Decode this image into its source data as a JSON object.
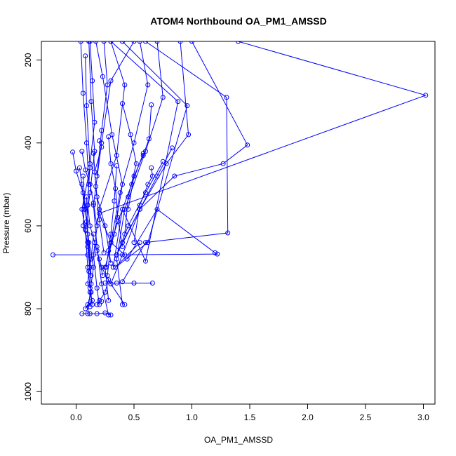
{
  "chart_data": {
    "type": "line",
    "title": "ATOM4 Northbound OA_PM1_AMSSD",
    "xlabel": "OA_PM1_AMSSD",
    "ylabel": "Pressure (mbar)",
    "xlim": [
      -0.3,
      3.1
    ],
    "ylim": [
      1030,
      155
    ],
    "y_reversed": true,
    "x_ticks": [
      0.0,
      0.5,
      1.0,
      1.5,
      2.0,
      2.5,
      3.0
    ],
    "x_tick_labels": [
      "0.0",
      "0.5",
      "1.0",
      "1.5",
      "2.0",
      "2.5",
      "3.0"
    ],
    "y_ticks": [
      200,
      400,
      600,
      800,
      1000
    ],
    "y_tick_labels": [
      "200",
      "400",
      "600",
      "800",
      "1000"
    ],
    "grid": false,
    "legend": "none",
    "series_color": "#0000ff",
    "series": [
      {
        "x": [
          0.11,
          0.13,
          0.16,
          0.12,
          0.08,
          0.1,
          0.14,
          0.12,
          0.15,
          0.1,
          0.09
        ],
        "y": [
          155,
          300,
          420,
          520,
          610,
          700,
          790,
          760,
          700,
          620,
          530
        ]
      },
      {
        "x": [
          0.08,
          0.09,
          0.12,
          0.05,
          0.1,
          0.13,
          0.1
        ],
        "y": [
          190,
          310,
          460,
          560,
          650,
          740,
          812
        ]
      },
      {
        "x": [
          0.5,
          0.3,
          0.22,
          0.15,
          0.18,
          0.22,
          0.28
        ],
        "y": [
          155,
          250,
          400,
          550,
          650,
          740,
          815
        ]
      },
      {
        "x": [
          0.3,
          0.42,
          0.35,
          0.2,
          0.15,
          0.18,
          0.2
        ],
        "y": [
          155,
          260,
          430,
          560,
          670,
          750,
          790
        ]
      },
      {
        "x": [
          0.17,
          0.23,
          0.31,
          0.4,
          0.33,
          0.25,
          0.28
        ],
        "y": [
          155,
          240,
          380,
          500,
          620,
          700,
          780
        ]
      },
      {
        "x": [
          0.55,
          0.62,
          0.5,
          0.38,
          0.3,
          0.27
        ],
        "y": [
          155,
          260,
          400,
          520,
          640,
          720
        ]
      },
      {
        "x": [
          0.7,
          0.75,
          0.6,
          0.42,
          0.35,
          0.4
        ],
        "y": [
          155,
          290,
          420,
          560,
          680,
          790
        ]
      },
      {
        "x": [
          0.9,
          0.97,
          0.78,
          0.55,
          0.4,
          0.3
        ],
        "y": [
          155,
          380,
          450,
          560,
          670,
          740
        ]
      },
      {
        "x": [
          1.0,
          1.48,
          1.27,
          0.85,
          0.55,
          0.35
        ],
        "y": [
          155,
          405,
          450,
          480,
          560,
          670
        ]
      },
      {
        "x": [
          1.4,
          3.02,
          0.2,
          0.3,
          0.42
        ],
        "y": [
          155,
          285,
          570,
          640,
          670
        ]
      },
      {
        "x": [
          0.6,
          1.3,
          1.31,
          0.6,
          0.4
        ],
        "y": [
          155,
          290,
          617,
          640,
          735
        ]
      },
      {
        "x": [
          0.4,
          0.96,
          0.62,
          0.34,
          0.55
        ],
        "y": [
          155,
          310,
          640,
          700,
          640
        ]
      },
      {
        "x": [
          0.3,
          0.88,
          0.6,
          0.4,
          0.32
        ],
        "y": [
          155,
          300,
          685,
          560,
          700
        ]
      },
      {
        "x": [
          -0.2,
          0.1,
          0.35,
          1.22,
          1.2,
          0.7,
          0.44
        ],
        "y": [
          670,
          670,
          670,
          668,
          665,
          560,
          680
        ]
      },
      {
        "x": [
          0.05,
          0.08,
          0.12,
          0.15,
          0.18
        ],
        "y": [
          420,
          465,
          500,
          545,
          600
        ]
      },
      {
        "x": [
          -0.03,
          0.0,
          0.06,
          0.09,
          0.12
        ],
        "y": [
          422,
          468,
          520,
          590,
          700
        ]
      },
      {
        "x": [
          0.2,
          0.22,
          0.16,
          0.18,
          0.25,
          0.3
        ],
        "y": [
          395,
          410,
          470,
          530,
          600,
          690
        ]
      },
      {
        "x": [
          0.28,
          0.3,
          0.34,
          0.36,
          0.4
        ],
        "y": [
          385,
          450,
          510,
          580,
          650
        ]
      },
      {
        "x": [
          0.4,
          0.47,
          0.52,
          0.45,
          0.42
        ],
        "y": [
          305,
          380,
          450,
          530,
          620
        ]
      },
      {
        "x": [
          0.65,
          0.63,
          0.58,
          0.5,
          0.45
        ],
        "y": [
          308,
          390,
          430,
          480,
          560
        ]
      },
      {
        "x": [
          0.65,
          0.66,
          0.62,
          0.55,
          0.5
        ],
        "y": [
          460,
          480,
          500,
          550,
          640
        ]
      },
      {
        "x": [
          0.66,
          0.5,
          0.35,
          0.25
        ],
        "y": [
          738,
          738,
          738,
          738
        ]
      },
      {
        "x": [
          0.3,
          0.25,
          0.18,
          0.12,
          0.05
        ],
        "y": [
          815,
          810,
          812,
          812,
          812
        ]
      },
      {
        "x": [
          0.13,
          0.1,
          0.08,
          0.14,
          0.12
        ],
        "y": [
          760,
          790,
          800,
          780,
          795
        ]
      },
      {
        "x": [
          0.2,
          0.22,
          0.18,
          0.25,
          0.28
        ],
        "y": [
          780,
          782,
          790,
          760,
          730
        ]
      },
      {
        "x": [
          0.15,
          0.13,
          0.11,
          0.1,
          0.12
        ],
        "y": [
          620,
          680,
          710,
          740,
          750
        ]
      },
      {
        "x": [
          0.1,
          0.12,
          0.16,
          0.2,
          0.23
        ],
        "y": [
          550,
          600,
          640,
          680,
          720
        ]
      },
      {
        "x": [
          0.03,
          0.05,
          0.07,
          0.06,
          0.1
        ],
        "y": [
          460,
          500,
          560,
          600,
          640
        ]
      },
      {
        "x": [
          0.83,
          0.7,
          0.55,
          0.4
        ],
        "y": [
          412,
          480,
          560,
          640
        ]
      },
      {
        "x": [
          0.75,
          0.6,
          0.45,
          0.35
        ],
        "y": [
          445,
          520,
          600,
          670
        ]
      },
      {
        "x": [
          0.58,
          0.48,
          0.36,
          0.28
        ],
        "y": [
          425,
          500,
          590,
          660
        ]
      },
      {
        "x": [
          0.35,
          0.33,
          0.3,
          0.26
        ],
        "y": [
          455,
          540,
          620,
          700
        ]
      },
      {
        "x": [
          0.15,
          0.17,
          0.2,
          0.24
        ],
        "y": [
          425,
          505,
          585,
          665
        ]
      },
      {
        "x": [
          0.06,
          0.08,
          0.11,
          0.13
        ],
        "y": [
          480,
          560,
          640,
          720
        ]
      },
      {
        "x": [
          0.42,
          0.3,
          0.22,
          0.18
        ],
        "y": [
          790,
          740,
          700,
          660
        ]
      },
      {
        "x": [
          0.12,
          0.14,
          0.16,
          0.12,
          0.1
        ],
        "y": [
          155,
          250,
          350,
          450,
          550
        ]
      },
      {
        "x": [
          0.04,
          0.06,
          0.09,
          0.11
        ],
        "y": [
          155,
          280,
          400,
          500
        ]
      },
      {
        "x": [
          0.24,
          0.27,
          0.22,
          0.18
        ],
        "y": [
          155,
          260,
          370,
          480
        ]
      }
    ]
  }
}
